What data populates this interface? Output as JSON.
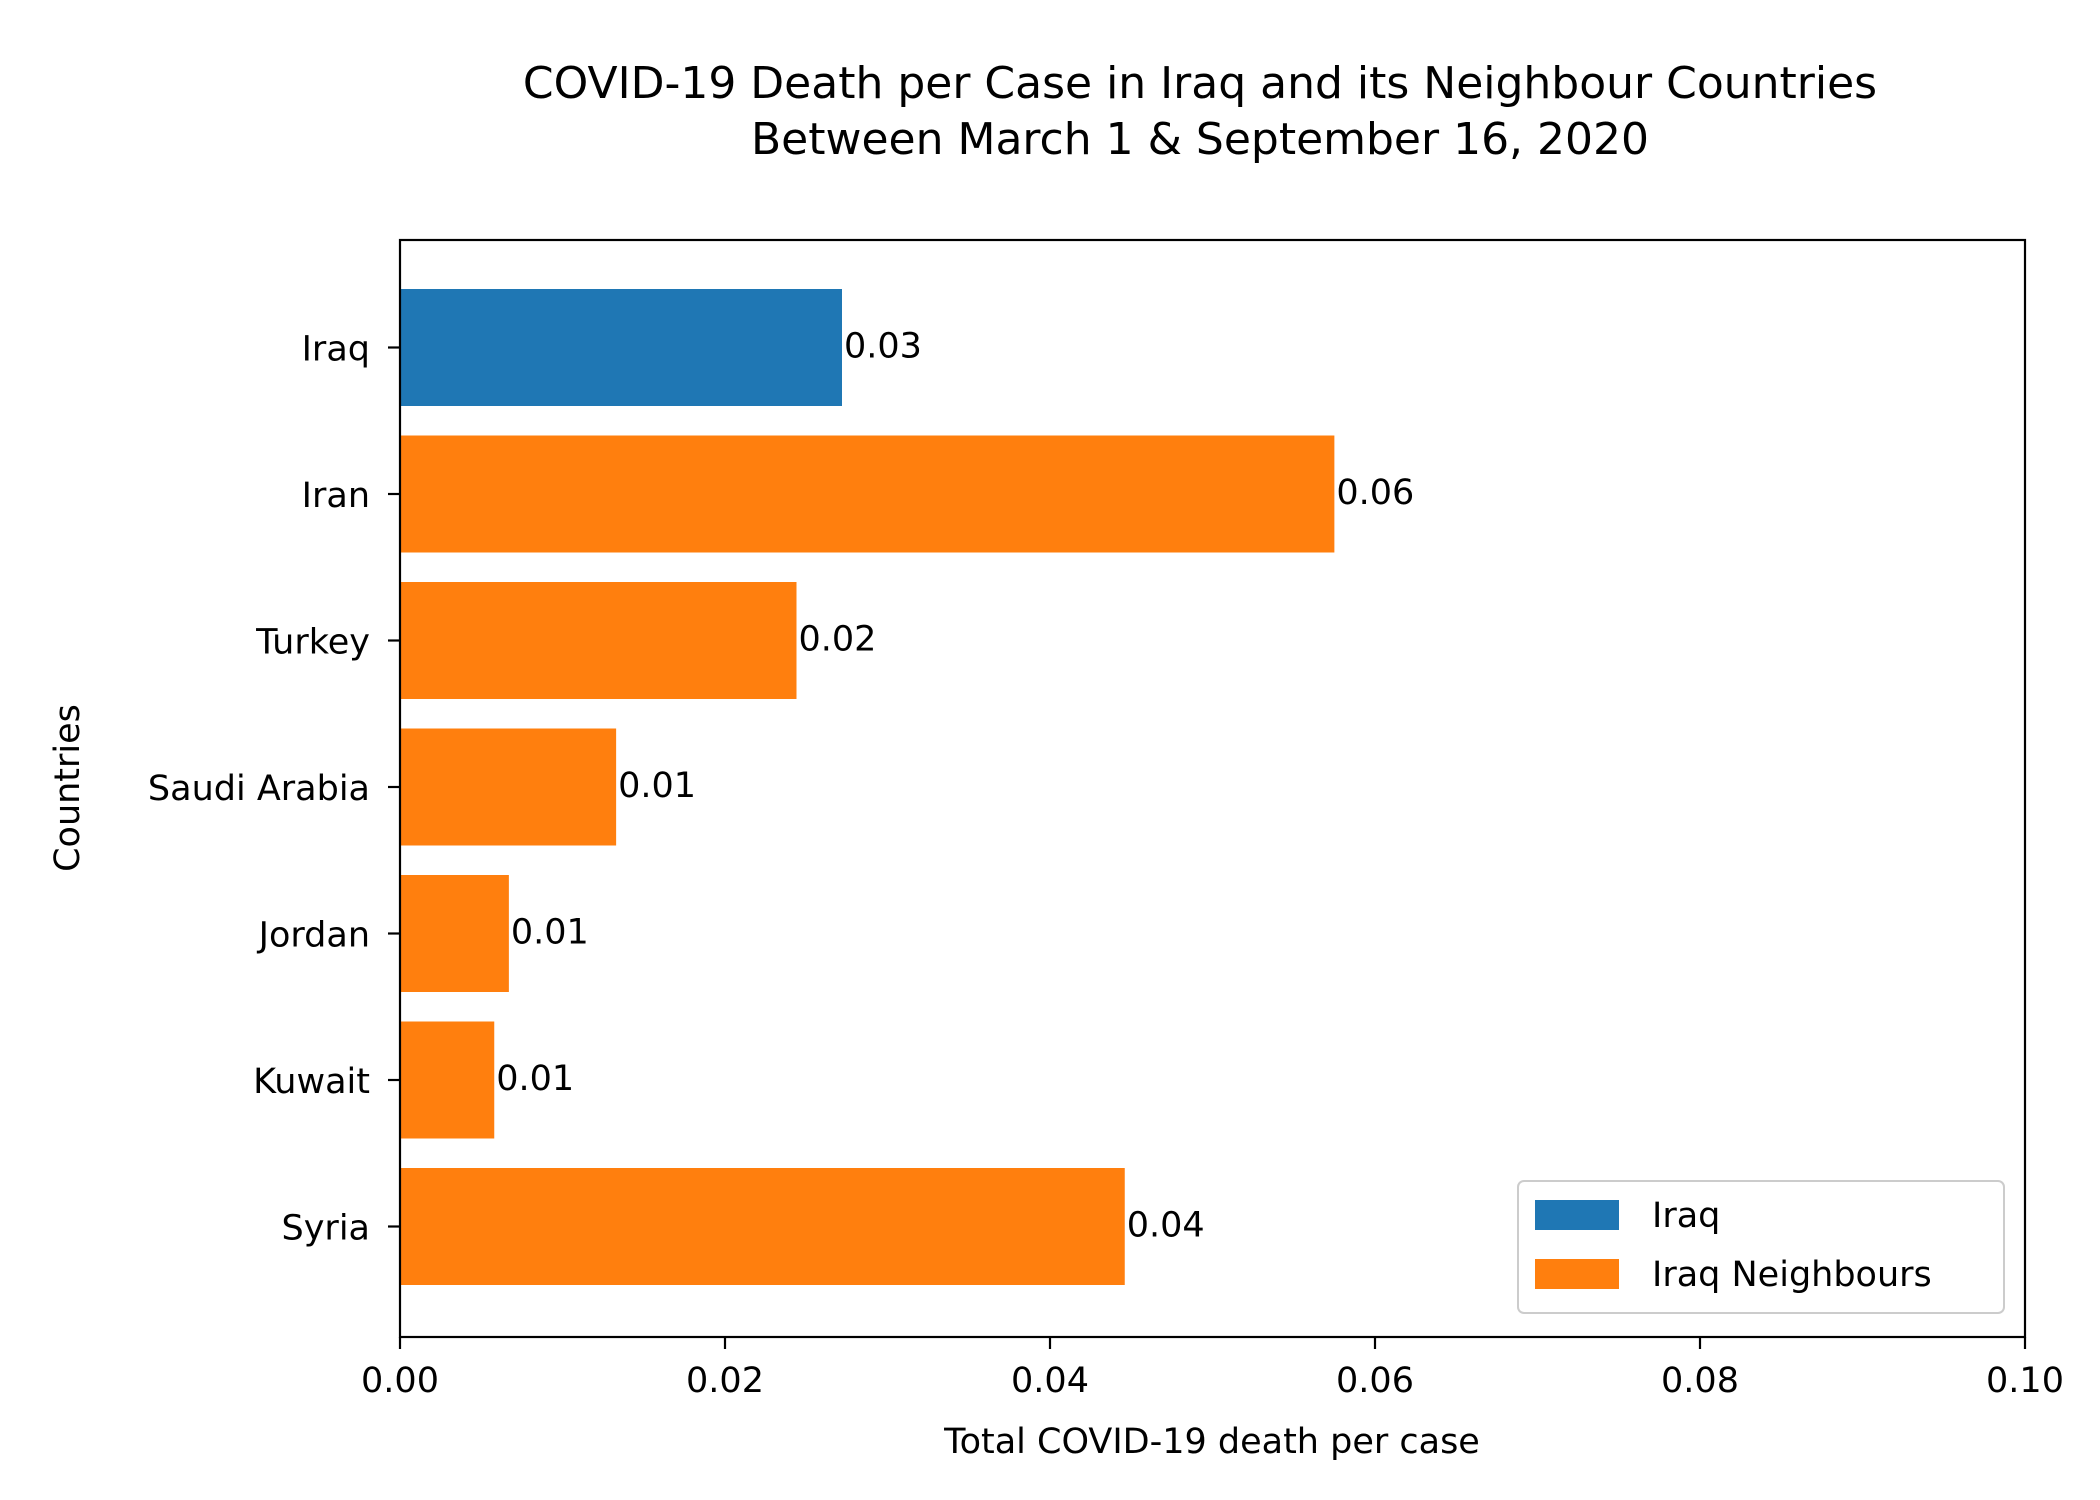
{
  "chart_data": {
    "type": "bar",
    "orientation": "horizontal",
    "title": [
      "COVID-19 Death per Case in Iraq and its Neighbour Countries",
      "Between March 1 & September 16, 2020"
    ],
    "xlabel": "Total COVID-19 death per case",
    "ylabel": "Countries",
    "xlim": [
      0,
      0.1
    ],
    "xticks": [
      "0.00",
      "0.02",
      "0.04",
      "0.06",
      "0.08",
      "0.10"
    ],
    "grid": false,
    "legend_position": "bottom-right",
    "categories": [
      "Iraq",
      "Iran",
      "Turkey",
      "Saudi Arabia",
      "Jordan",
      "Kuwait",
      "Syria"
    ],
    "values": [
      0.0272,
      0.0575,
      0.0244,
      0.0133,
      0.0067,
      0.0058,
      0.0446
    ],
    "data_labels": [
      "0.03",
      "0.06",
      "0.02",
      "0.01",
      "0.01",
      "0.01",
      "0.04"
    ],
    "series_of_category": [
      "Iraq",
      "Iraq Neighbours",
      "Iraq Neighbours",
      "Iraq Neighbours",
      "Iraq Neighbours",
      "Iraq Neighbours",
      "Iraq Neighbours"
    ],
    "series": [
      {
        "name": "Iraq",
        "color": "#1f77b4"
      },
      {
        "name": "Iraq Neighbours",
        "color": "#ff7f0e"
      }
    ]
  }
}
